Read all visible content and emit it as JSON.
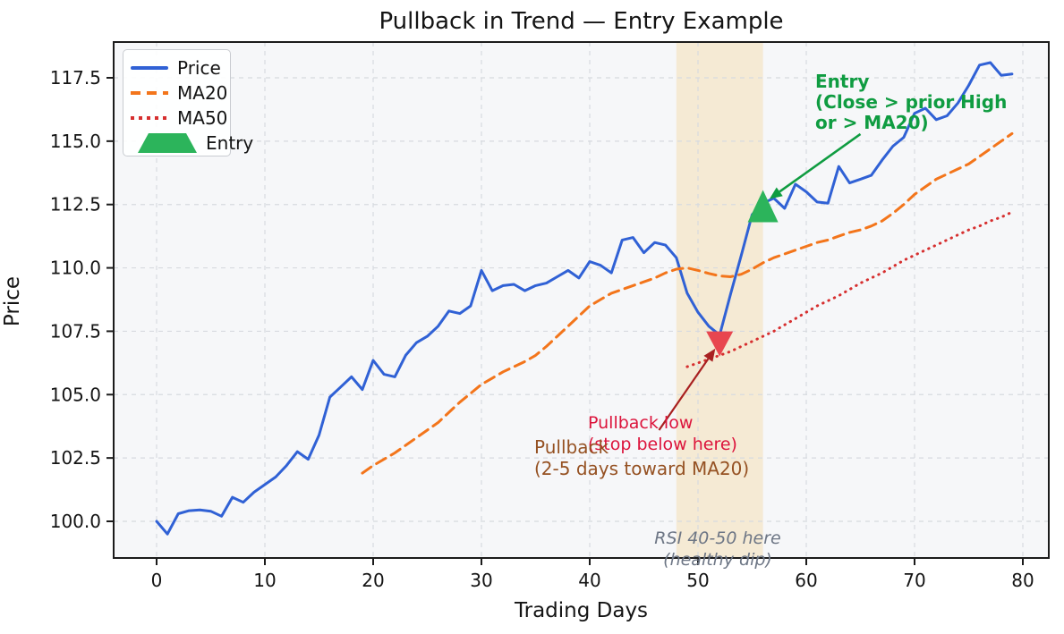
{
  "figure": {
    "title": "Pullback in Trend — Entry Example",
    "xlabel": "Trading Days",
    "ylabel": "Price"
  },
  "chart_data": {
    "type": "line",
    "title": "Pullback in Trend — Entry Example",
    "xlabel": "Trading Days",
    "ylabel": "Price",
    "xticks": [
      0,
      10,
      20,
      30,
      40,
      50,
      60,
      70,
      80
    ],
    "yticks": [
      100.0,
      102.5,
      105.0,
      107.5,
      110.0,
      112.5,
      115.0,
      117.5
    ],
    "xtick_labels": [
      "0",
      "10",
      "20",
      "30",
      "40",
      "50",
      "60",
      "70",
      "80"
    ],
    "ytick_labels": [
      "100.0",
      "102.5",
      "105.0",
      "107.5",
      "110.0",
      "112.5",
      "115.0",
      "117.5"
    ],
    "grid": true,
    "legend_position": "upper left",
    "colors": {
      "price": "#3061d5",
      "ma20": "#f3751b",
      "ma50": "#d62f2f",
      "entry_marker": "#2cb45b",
      "pullback_marker": "#e8464f",
      "entry_text": "#0f9c41",
      "pullback_low_text": "#dc143c",
      "pullback_text": "#955122",
      "rsi_text": "#6d7685",
      "band": "#f3ddb0",
      "grid": "#d7dadf",
      "axes_bg": "#f6f7f9",
      "spine": "#1b1b1b"
    },
    "band": {
      "x0": 48,
      "x1": 56,
      "opacity": 0.5,
      "label": "pullback-zone"
    },
    "series": [
      {
        "name": "Price",
        "style": "solid",
        "color": "#3061d5",
        "x_start": 0,
        "values": [
          100.0,
          99.5,
          100.3,
          100.42,
          100.45,
          100.4,
          100.2,
          100.95,
          100.75,
          101.15,
          101.45,
          101.75,
          102.2,
          102.75,
          102.45,
          103.4,
          104.9,
          105.3,
          105.7,
          105.2,
          106.35,
          105.8,
          105.7,
          106.55,
          107.05,
          107.3,
          107.7,
          108.3,
          108.2,
          108.5,
          109.9,
          109.1,
          109.3,
          109.35,
          109.1,
          109.3,
          109.4,
          109.65,
          109.9,
          109.6,
          110.25,
          110.1,
          109.8,
          111.1,
          111.2,
          110.6,
          111.0,
          110.9,
          110.4,
          109.0,
          108.25,
          107.7,
          107.35,
          108.95,
          110.5,
          112.1,
          112.55,
          112.75,
          112.35,
          113.3,
          113.0,
          112.6,
          112.55,
          114.0,
          113.35,
          113.5,
          113.65,
          114.25,
          114.8,
          115.15,
          116.1,
          116.3,
          115.85,
          116.0,
          116.5,
          117.2,
          118.0,
          118.1,
          117.6,
          117.65
        ]
      },
      {
        "name": "MA20",
        "style": "dashed",
        "color": "#f3751b",
        "x_start": 19,
        "values": [
          101.9,
          102.2,
          102.45,
          102.7,
          103.0,
          103.3,
          103.6,
          103.9,
          104.3,
          104.7,
          105.05,
          105.4,
          105.65,
          105.9,
          106.1,
          106.3,
          106.55,
          106.9,
          107.3,
          107.7,
          108.1,
          108.5,
          108.75,
          109.0,
          109.15,
          109.3,
          109.45,
          109.6,
          109.8,
          109.95,
          110.0,
          109.9,
          109.78,
          109.68,
          109.65,
          109.75,
          109.95,
          110.2,
          110.4,
          110.55,
          110.7,
          110.85,
          111.0,
          111.1,
          111.25,
          111.4,
          111.5,
          111.65,
          111.85,
          112.15,
          112.5,
          112.9,
          113.2,
          113.5,
          113.7,
          113.9,
          114.1,
          114.4,
          114.7,
          115.0,
          115.3
        ]
      },
      {
        "name": "MA50",
        "style": "dotted",
        "color": "#d62f2f",
        "x_start": 49,
        "values": [
          106.1,
          106.25,
          106.4,
          106.55,
          106.7,
          106.9,
          107.1,
          107.3,
          107.5,
          107.75,
          108.0,
          108.25,
          108.5,
          108.7,
          108.9,
          109.15,
          109.4,
          109.6,
          109.8,
          110.05,
          110.3,
          110.5,
          110.7,
          110.9,
          111.1,
          111.3,
          111.5,
          111.65,
          111.85,
          112.0,
          112.2
        ]
      }
    ],
    "markers": [
      {
        "name": "Entry",
        "shape": "triangle-up",
        "color": "#2cb45b",
        "x": 56,
        "y": 112.4
      },
      {
        "name": "Pullback low",
        "shape": "triangle-down",
        "color": "#e8464f",
        "x": 52,
        "y": 107.0
      }
    ],
    "annotations": [
      {
        "id": "entry-note",
        "text_lines": [
          "Entry",
          "(Close > prior High",
          "or > MA20)"
        ],
        "color": "#0f9c41",
        "x": 60.8,
        "y": 117.75,
        "anchor": "top-left",
        "arrow": {
          "from": [
            65.0,
            115.28
          ],
          "to": [
            56.6,
            112.72
          ],
          "color": "#0f9c41",
          "width": 2.6
        }
      },
      {
        "id": "pullback-low-note",
        "text_lines": [
          "Pullback low",
          "(stop below here)"
        ],
        "color": "#dc143c",
        "x": 39.8,
        "y": 104.3,
        "anchor": "top-left",
        "arrow": {
          "from": [
            46.4,
            103.6
          ],
          "to": [
            51.6,
            106.82
          ],
          "color": "#a82020",
          "width": 2.2
        }
      },
      {
        "id": "pullback-note",
        "text_lines": [
          "Pullback",
          "(2-5 days toward MA20)"
        ],
        "color": "#955122",
        "x": 34.9,
        "y": 103.35,
        "anchor": "top-left"
      },
      {
        "id": "rsi-note",
        "text_lines": [
          "RSI 40-50 here",
          "(healthy dip)"
        ],
        "color": "#6d7685",
        "x": 51.8,
        "y": 99.75,
        "anchor": "top-center"
      }
    ],
    "legend": [
      {
        "label": "Price",
        "style": "solid",
        "color": "#3061d5"
      },
      {
        "label": "MA20",
        "style": "dashed",
        "color": "#f3751b"
      },
      {
        "label": "MA50",
        "style": "dotted",
        "color": "#d62f2f"
      },
      {
        "label": "Entry",
        "style": "triangle",
        "color": "#2cb45b"
      }
    ]
  }
}
